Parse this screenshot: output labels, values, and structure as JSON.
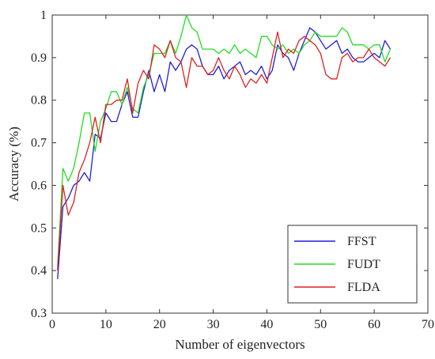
{
  "chart_data": {
    "type": "line",
    "title": "",
    "xlabel": "Number of eigenvectors",
    "ylabel": "Accuracy (%)",
    "xlim": [
      0,
      70
    ],
    "ylim": [
      0.3,
      1
    ],
    "xticks": [
      0,
      10,
      20,
      30,
      40,
      50,
      60,
      70
    ],
    "yticks": [
      0.3,
      0.4,
      0.5,
      0.6,
      0.7,
      0.8,
      0.9,
      1
    ],
    "xtick_labels": [
      "0",
      "10",
      "20",
      "30",
      "40",
      "50",
      "60",
      "70"
    ],
    "ytick_labels": [
      "0.3",
      "0.4",
      "0.5",
      "0.6",
      "0.7",
      "0.8",
      "0.9",
      "1"
    ],
    "grid": false,
    "legend": "bottom-right",
    "x": [
      1,
      2,
      3,
      4,
      5,
      6,
      7,
      8,
      9,
      10,
      11,
      12,
      13,
      14,
      15,
      16,
      17,
      18,
      19,
      20,
      21,
      22,
      23,
      24,
      25,
      26,
      27,
      28,
      29,
      30,
      31,
      32,
      33,
      34,
      35,
      36,
      37,
      38,
      39,
      40,
      41,
      42,
      43,
      44,
      45,
      46,
      47,
      48,
      49,
      50,
      51,
      52,
      53,
      54,
      55,
      56,
      57,
      58,
      59,
      60,
      61,
      62,
      63
    ],
    "series": [
      {
        "name": "FFST",
        "color": "#1f1fd8",
        "values": [
          0.38,
          0.55,
          0.57,
          0.6,
          0.61,
          0.63,
          0.61,
          0.72,
          0.71,
          0.77,
          0.75,
          0.75,
          0.79,
          0.82,
          0.76,
          0.76,
          0.82,
          0.87,
          0.82,
          0.86,
          0.82,
          0.89,
          0.87,
          0.89,
          0.92,
          0.93,
          0.92,
          0.88,
          0.86,
          0.86,
          0.88,
          0.85,
          0.87,
          0.88,
          0.89,
          0.86,
          0.87,
          0.86,
          0.88,
          0.85,
          0.87,
          0.93,
          0.91,
          0.9,
          0.87,
          0.91,
          0.94,
          0.97,
          0.96,
          0.94,
          0.92,
          0.93,
          0.94,
          0.91,
          0.92,
          0.9,
          0.89,
          0.89,
          0.9,
          0.91,
          0.9,
          0.94,
          0.92
        ]
      },
      {
        "name": "FUDT",
        "color": "#22dd22",
        "values": [
          0.41,
          0.64,
          0.61,
          0.64,
          0.7,
          0.77,
          0.77,
          0.68,
          0.75,
          0.78,
          0.82,
          0.82,
          0.79,
          0.83,
          0.78,
          0.77,
          0.83,
          0.86,
          0.91,
          0.91,
          0.91,
          0.94,
          0.91,
          0.95,
          1.0,
          0.97,
          0.96,
          0.92,
          0.92,
          0.92,
          0.91,
          0.92,
          0.91,
          0.93,
          0.91,
          0.92,
          0.91,
          0.9,
          0.95,
          0.95,
          0.93,
          0.92,
          0.93,
          0.91,
          0.92,
          0.91,
          0.93,
          0.94,
          0.96,
          0.95,
          0.95,
          0.95,
          0.95,
          0.97,
          0.96,
          0.93,
          0.93,
          0.93,
          0.92,
          0.93,
          0.93,
          0.89,
          0.92
        ]
      },
      {
        "name": "FLDA",
        "color": "#e02020",
        "values": [
          0.4,
          0.6,
          0.53,
          0.56,
          0.63,
          0.66,
          0.7,
          0.76,
          0.7,
          0.79,
          0.79,
          0.8,
          0.8,
          0.85,
          0.77,
          0.84,
          0.87,
          0.85,
          0.93,
          0.92,
          0.9,
          0.94,
          0.9,
          0.89,
          0.83,
          0.9,
          0.88,
          0.88,
          0.86,
          0.87,
          0.9,
          0.87,
          0.85,
          0.88,
          0.86,
          0.83,
          0.85,
          0.84,
          0.86,
          0.84,
          0.9,
          0.96,
          0.9,
          0.92,
          0.91,
          0.94,
          0.95,
          0.94,
          0.93,
          0.91,
          0.86,
          0.85,
          0.85,
          0.9,
          0.91,
          0.89,
          0.9,
          0.9,
          0.92,
          0.9,
          0.89,
          0.88,
          0.9
        ]
      }
    ]
  }
}
